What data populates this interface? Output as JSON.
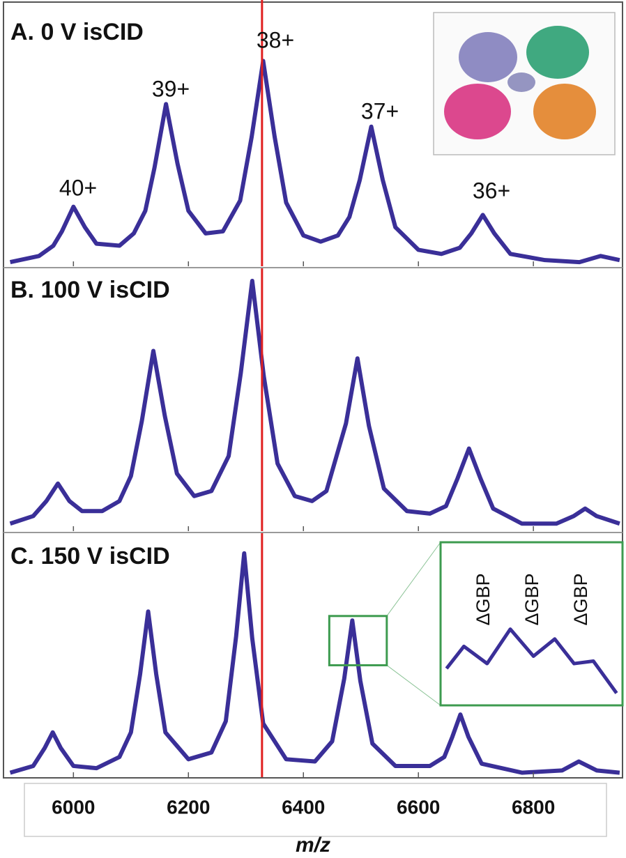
{
  "chart_data": [
    {
      "type": "line",
      "title": "A. 0 V isCID",
      "color": "#3a2f98",
      "xlim": [
        5882,
        6955
      ],
      "ylim": [
        0,
        128
      ],
      "reference_line": 6328,
      "reference_color": "#e02020",
      "peak_labels": [
        "40+",
        "39+",
        "38+",
        "37+",
        "36+"
      ],
      "x": [
        5890,
        5940,
        5965,
        5980,
        6000,
        6020,
        6040,
        6080,
        6105,
        6125,
        6141,
        6161,
        6181,
        6200,
        6230,
        6260,
        6290,
        6310,
        6330,
        6350,
        6370,
        6400,
        6430,
        6460,
        6480,
        6498,
        6518,
        6538,
        6560,
        6600,
        6640,
        6672,
        6692,
        6712,
        6732,
        6760,
        6820,
        6880,
        6917,
        6950
      ],
      "values": [
        2,
        5,
        10,
        17,
        29,
        19,
        11,
        10,
        16,
        27,
        48,
        79,
        50,
        27,
        16,
        17,
        32,
        63,
        100,
        63,
        31,
        15,
        12,
        15,
        24,
        42,
        68,
        42,
        19,
        8,
        6,
        9,
        16,
        25,
        16,
        6,
        3,
        2,
        5,
        3
      ]
    },
    {
      "type": "line",
      "title": "B. 100 V isCID",
      "color": "#3a2f98",
      "xlim": [
        5882,
        6955
      ],
      "ylim": [
        0,
        105
      ],
      "reference_line": 6328,
      "reference_color": "#e02020",
      "x": [
        5890,
        5930,
        5953,
        5973,
        5993,
        6015,
        6050,
        6080,
        6100,
        6119,
        6139,
        6159,
        6180,
        6210,
        6240,
        6270,
        6291,
        6311,
        6331,
        6355,
        6385,
        6415,
        6440,
        6474,
        6494,
        6514,
        6540,
        6580,
        6620,
        6648,
        6668,
        6688,
        6708,
        6730,
        6780,
        6840,
        6870,
        6890,
        6910,
        6950
      ],
      "values": [
        3,
        6,
        12,
        19,
        12,
        8,
        8,
        12,
        22,
        44,
        72,
        46,
        23,
        14,
        16,
        30,
        63,
        100,
        62,
        27,
        14,
        12,
        16,
        43,
        69,
        42,
        17,
        8,
        7,
        10,
        21,
        33,
        21,
        9,
        3,
        3,
        6,
        9,
        6,
        3
      ]
    },
    {
      "type": "line",
      "title": "C. 150 V isCID",
      "color": "#3a2f98",
      "xlim": [
        5882,
        6955
      ],
      "ylim": [
        0,
        109
      ],
      "reference_line": 6328,
      "reference_color": "#e02020",
      "x": [
        5890,
        5930,
        5950,
        5964,
        5978,
        6000,
        6040,
        6080,
        6100,
        6116,
        6130,
        6144,
        6160,
        6200,
        6240,
        6265,
        6283,
        6297,
        6311,
        6330,
        6370,
        6420,
        6450,
        6471,
        6485,
        6499,
        6520,
        6560,
        6620,
        6645,
        6659,
        6673,
        6687,
        6710,
        6780,
        6850,
        6879,
        6910,
        6950
      ],
      "values": [
        2,
        5,
        13,
        20,
        13,
        5,
        4,
        9,
        20,
        46,
        74,
        46,
        20,
        8,
        11,
        25,
        63,
        100,
        62,
        24,
        8,
        7,
        16,
        44,
        70,
        43,
        15,
        5,
        5,
        9,
        18,
        28,
        18,
        6,
        2,
        3,
        7,
        3,
        2
      ],
      "xticks": [
        6000,
        6200,
        6400,
        6600,
        6800
      ],
      "xlabel": "m/z",
      "zoom_box": {
        "xlim": [
          6445,
          6545
        ],
        "ylim": [
          50,
          72
        ],
        "color": "#3d9b4f"
      },
      "inset": {
        "xlim": [
          6440,
          6532
        ],
        "ylim": [
          18,
          52
        ],
        "labels": [
          "ΔGBP",
          "ΔGBP",
          "ΔGBP"
        ],
        "x": [
          6442,
          6451,
          6463,
          6475,
          6487,
          6498,
          6508,
          6518,
          6530
        ],
        "values": [
          31,
          40,
          33,
          47,
          36,
          43,
          33,
          34,
          21
        ]
      }
    }
  ]
}
